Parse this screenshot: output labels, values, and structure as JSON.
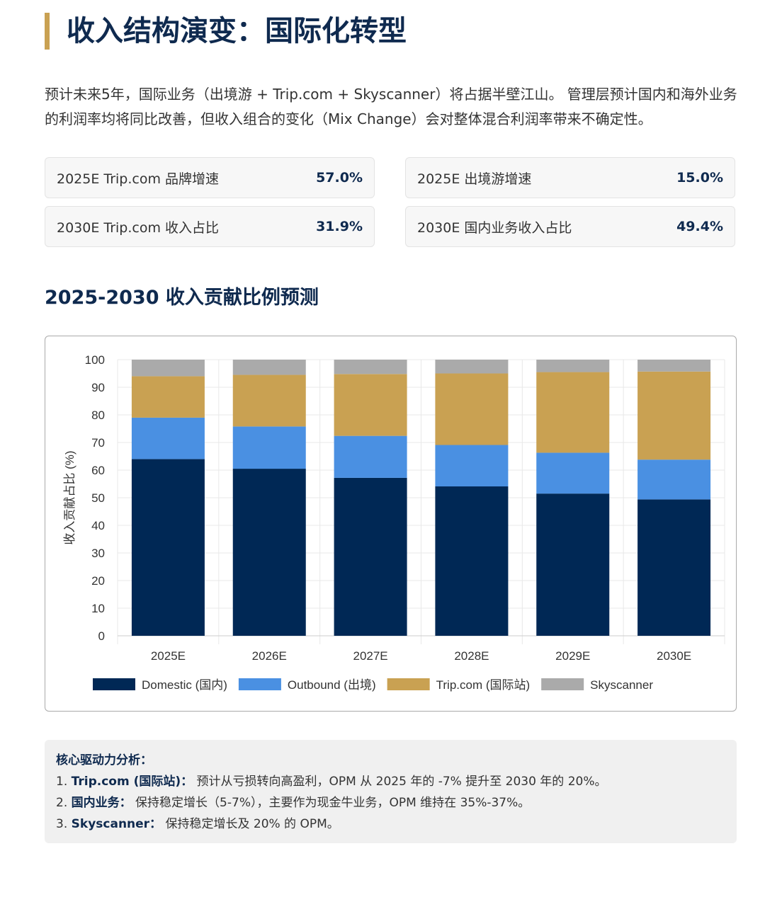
{
  "title": "收入结构演变：国际化转型",
  "intro": "预计未来5年，国际业务（出境游 + Trip.com + Skyscanner）将占据半壁江山。 管理层预计国内和海外业务的利润率均将同比改善，但收入组合的变化（Mix Change）会对整体混合利润率带来不确定性。",
  "kpis": [
    {
      "label": "2025E Trip.com 品牌增速",
      "value": "57.0%"
    },
    {
      "label": "2025E 出境游增速",
      "value": "15.0%"
    },
    {
      "label": "2030E Trip.com 收入占比",
      "value": "31.9%"
    },
    {
      "label": "2030E 国内业务收入占比",
      "value": "49.4%"
    }
  ],
  "section_title": "2025-2030 收入贡献比例预测",
  "chart_data": {
    "type": "bar",
    "stacked": true,
    "categories": [
      "2025E",
      "2026E",
      "2027E",
      "2028E",
      "2029E",
      "2030E"
    ],
    "ylabel": "收入贡献占比 (%)",
    "ylim": [
      0,
      100
    ],
    "yticks": [
      0,
      10,
      20,
      30,
      40,
      50,
      60,
      70,
      80,
      90,
      100
    ],
    "grid": true,
    "legend": "bottom",
    "series": [
      {
        "name": "Domestic (国内)",
        "color": "#002855",
        "values": [
          64.0,
          60.5,
          57.2,
          54.1,
          51.5,
          49.4
        ]
      },
      {
        "name": "Outbound (出境)",
        "color": "#4a90e2",
        "values": [
          15.0,
          15.3,
          15.2,
          15.0,
          14.8,
          14.4
        ]
      },
      {
        "name": "Trip.com (国际站)",
        "color": "#c9a152",
        "values": [
          15.0,
          18.7,
          22.4,
          25.9,
          29.2,
          31.9
        ]
      },
      {
        "name": "Skyscanner",
        "color": "#aaaaaa",
        "values": [
          6.0,
          5.5,
          5.2,
          5.0,
          4.5,
          4.3
        ]
      }
    ]
  },
  "notes": {
    "heading": "核心驱动力分析：",
    "items": [
      {
        "num": "1.",
        "key": "Trip.com (国际站)：",
        "text": "预计从亏损转向高盈利，OPM 从 2025 年的 -7% 提升至 2030 年的 20%。"
      },
      {
        "num": "2.",
        "key": "国内业务：",
        "text": "保持稳定增长（5-7%），主要作为现金牛业务，OPM 维持在 35%-37%。"
      },
      {
        "num": "3.",
        "key": "Skyscanner：",
        "text": "保持稳定增长及 20% 的 OPM。"
      }
    ]
  }
}
